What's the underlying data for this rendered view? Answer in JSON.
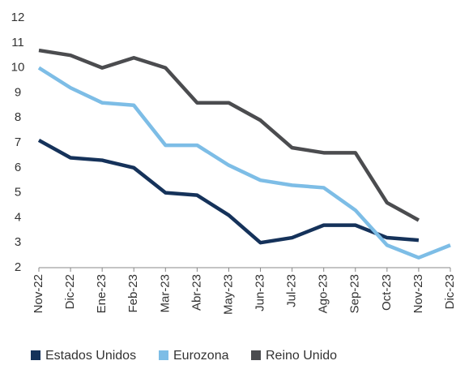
{
  "chart_data": {
    "type": "line",
    "categories": [
      "Nov-22",
      "Dic-22",
      "Ene-23",
      "Feb-23",
      "Mar-23",
      "Abr-23",
      "May-23",
      "Jun-23",
      "Jul-23",
      "Ago-23",
      "Sep-23",
      "Oct-23",
      "Nov-23",
      "Dic-23"
    ],
    "series": [
      {
        "name": "Estados Unidos",
        "color": "#15325a",
        "values": [
          7.1,
          6.4,
          6.3,
          6.0,
          5.0,
          4.9,
          4.1,
          3.0,
          3.2,
          3.7,
          3.7,
          3.2,
          3.1,
          null
        ]
      },
      {
        "name": "Eurozona",
        "color": "#7dbde6",
        "values": [
          10.0,
          9.2,
          8.6,
          8.5,
          6.9,
          6.9,
          6.1,
          5.5,
          5.3,
          5.2,
          4.3,
          2.9,
          2.4,
          2.9
        ]
      },
      {
        "name": "Reino Unido",
        "color": "#4b4c4f",
        "values": [
          10.7,
          10.5,
          10.0,
          10.4,
          10.0,
          8.6,
          8.6,
          7.9,
          6.8,
          6.6,
          6.6,
          4.6,
          3.9,
          null
        ]
      }
    ],
    "ylim": [
      2,
      12
    ],
    "yticks": [
      2,
      3,
      4,
      5,
      6,
      7,
      8,
      9,
      10,
      11,
      12
    ],
    "legend": "bottom"
  }
}
